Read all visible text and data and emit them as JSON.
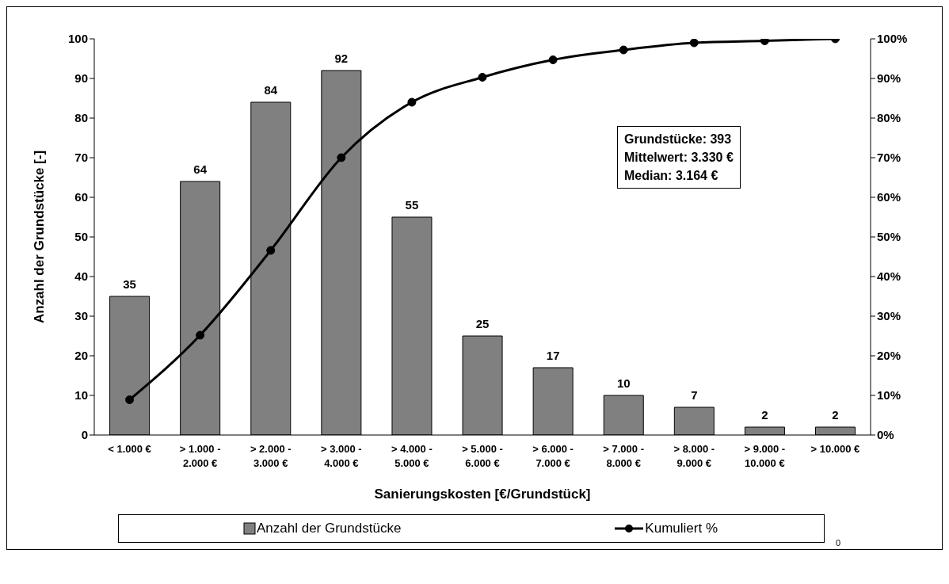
{
  "chart_data": {
    "type": "bar",
    "xlabel": "Sanierungskosten [€/Grundstück]",
    "ylabel": "Anzahl der Grundstücke [-]",
    "categories": [
      "< 1.000 €",
      "> 1.000 -\n2.000 €",
      "> 2.000 -\n3.000 €",
      "> 3.000 -\n4.000 €",
      "> 4.000 -\n5.000 €",
      "> 5.000 -\n6.000 €",
      "> 6.000 -\n7.000 €",
      "> 7.000 -\n8.000 €",
      "> 8.000 -\n9.000 €",
      "> 9.000 -\n10.000 €",
      "> 10.000 €"
    ],
    "series": [
      {
        "name": "Anzahl der Grundstücke",
        "color": "#808080",
        "values": [
          35,
          64,
          84,
          92,
          55,
          25,
          17,
          10,
          7,
          2,
          2
        ],
        "value_labels": [
          "35",
          "64",
          "84",
          "92",
          "55",
          "25",
          "17",
          "10",
          "7",
          "2",
          "2"
        ]
      },
      {
        "name": "Kumuliert %",
        "type": "line",
        "axis": "y2",
        "color": "#000000",
        "values": [
          8.9,
          25.2,
          46.6,
          70.0,
          84.0,
          90.3,
          94.7,
          97.2,
          99.0,
          99.5,
          100
        ]
      }
    ],
    "ylim": [
      0,
      100
    ],
    "yticks": [
      0,
      10,
      20,
      30,
      40,
      50,
      60,
      70,
      80,
      90,
      100
    ],
    "y2lim": [
      0,
      100
    ],
    "y2ticks": [
      {
        "value": 0,
        "label": "0%"
      },
      {
        "value": 10,
        "label": "10%"
      },
      {
        "value": 20,
        "label": "20%"
      },
      {
        "value": 30,
        "label": "30%"
      },
      {
        "value": 40,
        "label": "40%"
      },
      {
        "value": 50,
        "label": "50%"
      },
      {
        "value": 60,
        "label": "60%"
      },
      {
        "value": 70,
        "label": "70%"
      },
      {
        "value": 80,
        "label": "80%"
      },
      {
        "value": 90,
        "label": "90%"
      },
      {
        "value": 100,
        "label": "100%"
      }
    ],
    "grid": false,
    "legend": "bottom",
    "marker": "circle",
    "line_style": "solid",
    "annotations": [
      "Grundstücke: 393",
      "Mittelwert: 3.330 €",
      "Median: 3.164 €",
      "0"
    ]
  }
}
